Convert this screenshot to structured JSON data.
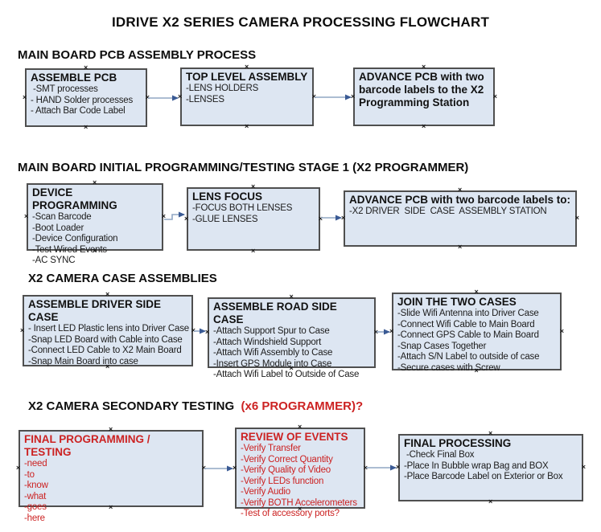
{
  "title": "IDRIVE X2  SERIES CAMERA PROCESSING FLOWCHART",
  "colors": {
    "box_fill": "#dde6f2",
    "box_border": "#4f4f4f",
    "arrow_line": "#91a7c4",
    "arrow_head": "#3a5a94",
    "red_text": "#cc2222",
    "black_text": "#111111"
  },
  "icons": {
    "connection_handle": "×",
    "arrow": "right-arrow"
  },
  "sections": [
    {
      "header": "MAIN BOARD PCB ASSEMBLY PROCESS",
      "boxes": [
        {
          "heading": "ASSEMBLE PCB",
          "items": [
            " -SMT processes",
            "- HAND Solder processes",
            "- Attach Bar Code Label"
          ]
        },
        {
          "heading": "TOP LEVEL ASSEMBLY",
          "items": [
            "-LENS HOLDERS",
            "-LENSES"
          ]
        },
        {
          "heading": "ADVANCE PCB with two barcode labels to the X2 Programming Station",
          "items": []
        }
      ]
    },
    {
      "header": "MAIN BOARD INITIAL PROGRAMMING/TESTING STAGE 1 (X2 PROGRAMMER)",
      "boxes": [
        {
          "heading": "DEVICE PROGRAMMING",
          "items": [
            "-Scan Barcode",
            "-Boot Loader",
            "-Device Configuration",
            "-Test Wired Events",
            "-AC SYNC"
          ]
        },
        {
          "heading": "LENS FOCUS",
          "items": [
            "-FOCUS BOTH LENSES",
            "-GLUE LENSES"
          ]
        },
        {
          "heading": "ADVANCE PCB with two barcode labels to:",
          "items": [
            "-X2 DRIVER  SIDE  CASE  ASSEMBLY STATION"
          ]
        }
      ]
    },
    {
      "header": "X2 CAMERA CASE ASSEMBLIES",
      "boxes": [
        {
          "heading": "ASSEMBLE DRIVER SIDE CASE",
          "items": [
            "- Insert LED Plastic lens into Driver Case",
            "-Snap LED Board with Cable into Case",
            "-Connect LED Cable to X2 Main Board",
            "-Snap Main Board into case"
          ]
        },
        {
          "heading": "ASSEMBLE ROAD SIDE CASE",
          "items": [
            "-Attach Support Spur to Case",
            "-Attach Windshield Support",
            "-Attach Wifi Assembly to Case",
            "-Insert GPS Module into Case",
            "-Attach Wifi Label to Outside of Case"
          ]
        },
        {
          "heading": "JOIN THE TWO CASES",
          "items": [
            "-Slide Wifi Antenna into Driver Case",
            "-Connect Wifi Cable to Main Board",
            "-Connect GPS Cable to Main Board",
            "-Snap Cases Together",
            "-Attach S/N Label to outside of case",
            "-Secure cases with Screw"
          ]
        }
      ]
    },
    {
      "header_black": "X2 CAMERA SECONDARY TESTING ",
      "header_red": " (x6 PROGRAMMER)?",
      "boxes": [
        {
          "heading": "FINAL PROGRAMMING / TESTING",
          "items": [
            "-need",
            "-to",
            "-know",
            "-what",
            "-goes",
            "-here"
          ]
        },
        {
          "heading": "REVIEW OF EVENTS",
          "items": [
            "-Verify Transfer",
            "-Verify Correct Quantity",
            "-Verify Quality of Video",
            "-Verify LEDs function",
            "-Verify Audio",
            "-Verify BOTH Accelerometers",
            "-Test of accessory ports?"
          ]
        },
        {
          "heading": "FINAL PROCESSING",
          "items": [
            " -Check Final Box",
            "-Place In Bubble wrap Bag and BOX",
            "-Place Barcode Label on Exterior or Box"
          ]
        }
      ]
    }
  ]
}
